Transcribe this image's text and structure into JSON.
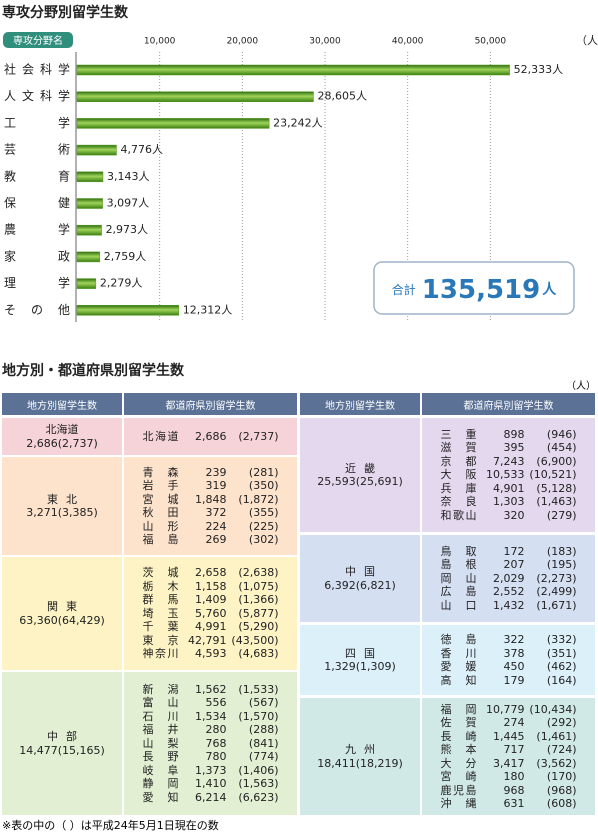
{
  "chart_data": {
    "type": "hbar",
    "title": "専攻分野別留学生数",
    "category_header": "専攻分野名",
    "unit": "（人）",
    "categories": [
      "社会科学",
      "人文科学",
      "工学",
      "芸術",
      "教育",
      "保健",
      "農学",
      "家政",
      "理学",
      "その他"
    ],
    "values": [
      52333,
      28605,
      23242,
      4776,
      3143,
      3097,
      2973,
      2759,
      2279,
      12312
    ],
    "value_labels": [
      "52,333人",
      "28,605人",
      "23,242人",
      "4,776人",
      "3,143人",
      "3,097人",
      "2,973人",
      "2,759人",
      "2,279人",
      "12,312人"
    ],
    "color": "#4f9a1e",
    "grid": true,
    "xlim": [
      0,
      60000
    ],
    "xticks": [
      {
        "value": 10000,
        "label": "10,000"
      },
      {
        "value": 20000,
        "label": "20,000"
      },
      {
        "value": 30000,
        "label": "30,000"
      },
      {
        "value": 40000,
        "label": "40,000"
      },
      {
        "value": 50000,
        "label": "50,000"
      }
    ],
    "total": {
      "label": "合計",
      "value": "135,519",
      "unit": "人"
    }
  },
  "table": {
    "title": "地方別・都道府県別留学生数",
    "unit": "（人）",
    "headers": [
      "地方別留学生数",
      "都道府県別留学生数",
      "地方別留学生数",
      "都道府県別留学生数"
    ],
    "regions": [
      {
        "name": "北海道",
        "total": "2,686(2,737)",
        "color": "#f6d3d8",
        "prefectures": [
          [
            "北海道",
            "2,686",
            "(2,737)"
          ]
        ]
      },
      {
        "name": "東北",
        "total": "3,271(3,385)",
        "color": "#fde2cc",
        "prefectures": [
          [
            "青森",
            "239",
            "(281)"
          ],
          [
            "岩手",
            "319",
            "(350)"
          ],
          [
            "宮城",
            "1,848",
            "(1,872)"
          ],
          [
            "秋田",
            "372",
            "(355)"
          ],
          [
            "山形",
            "224",
            "(225)"
          ],
          [
            "福島",
            "269",
            "(302)"
          ]
        ]
      },
      {
        "name": "関東",
        "total": "63,360(64,429)",
        "color": "#fdf3c4",
        "prefectures": [
          [
            "茨城",
            "2,658",
            "(2,638)"
          ],
          [
            "栃木",
            "1,158",
            "(1,075)"
          ],
          [
            "群馬",
            "1,409",
            "(1,366)"
          ],
          [
            "埼玉",
            "5,760",
            "(5,877)"
          ],
          [
            "千葉",
            "4,991",
            "(5,290)"
          ],
          [
            "東京",
            "42,791",
            "(43,500)"
          ],
          [
            "神奈川",
            "4,593",
            "(4,683)"
          ]
        ]
      },
      {
        "name": "中部",
        "total": "14,477(15,165)",
        "color": "#e2efd3",
        "prefectures": [
          [
            "新潟",
            "1,562",
            "(1,533)"
          ],
          [
            "富山",
            "556",
            "(567)"
          ],
          [
            "石川",
            "1,534",
            "(1,570)"
          ],
          [
            "福井",
            "280",
            "(288)"
          ],
          [
            "山梨",
            "768",
            "(841)"
          ],
          [
            "長野",
            "780",
            "(774)"
          ],
          [
            "岐阜",
            "1,373",
            "(1,406)"
          ],
          [
            "静岡",
            "1,410",
            "(1,563)"
          ],
          [
            "愛知",
            "6,214",
            "(6,623)"
          ]
        ]
      },
      {
        "name": "近畿",
        "total": "25,593(25,691)",
        "color": "#e4d8ee",
        "prefectures": [
          [
            "三重",
            "898",
            "(946)"
          ],
          [
            "滋賀",
            "395",
            "(454)"
          ],
          [
            "京都",
            "7,243",
            "(6,900)"
          ],
          [
            "大阪",
            "10,533",
            "(10,521)"
          ],
          [
            "兵庫",
            "4,901",
            "(5,128)"
          ],
          [
            "奈良",
            "1,303",
            "(1,463)"
          ],
          [
            "和歌山",
            "320",
            "(279)"
          ]
        ]
      },
      {
        "name": "中国",
        "total": "6,392(6,821)",
        "color": "#d4dff2",
        "prefectures": [
          [
            "鳥取",
            "172",
            "(183)"
          ],
          [
            "島根",
            "207",
            "(195)"
          ],
          [
            "岡山",
            "2,029",
            "(2,273)"
          ],
          [
            "広島",
            "2,552",
            "(2,499)"
          ],
          [
            "山口",
            "1,432",
            "(1,671)"
          ]
        ]
      },
      {
        "name": "四国",
        "total": "1,329(1,309)",
        "color": "#dcf0fa",
        "prefectures": [
          [
            "徳島",
            "322",
            "(332)"
          ],
          [
            "香川",
            "378",
            "(351)"
          ],
          [
            "愛媛",
            "450",
            "(462)"
          ],
          [
            "高知",
            "179",
            "(164)"
          ]
        ]
      },
      {
        "name": "九州",
        "total": "18,411(18,219)",
        "color": "#d0e9e7",
        "prefectures": [
          [
            "福岡",
            "10,779",
            "(10,434)"
          ],
          [
            "佐賀",
            "274",
            "(292)"
          ],
          [
            "長崎",
            "1,445",
            "(1,461)"
          ],
          [
            "熊本",
            "717",
            "(724)"
          ],
          [
            "大分",
            "3,417",
            "(3,562)"
          ],
          [
            "宮崎",
            "180",
            "(170)"
          ],
          [
            "鹿児島",
            "968",
            "(968)"
          ],
          [
            "沖縄",
            "631",
            "(608)"
          ]
        ]
      }
    ],
    "footnote": "※表の中の（ ）は平成24年5月1日現在の数"
  }
}
